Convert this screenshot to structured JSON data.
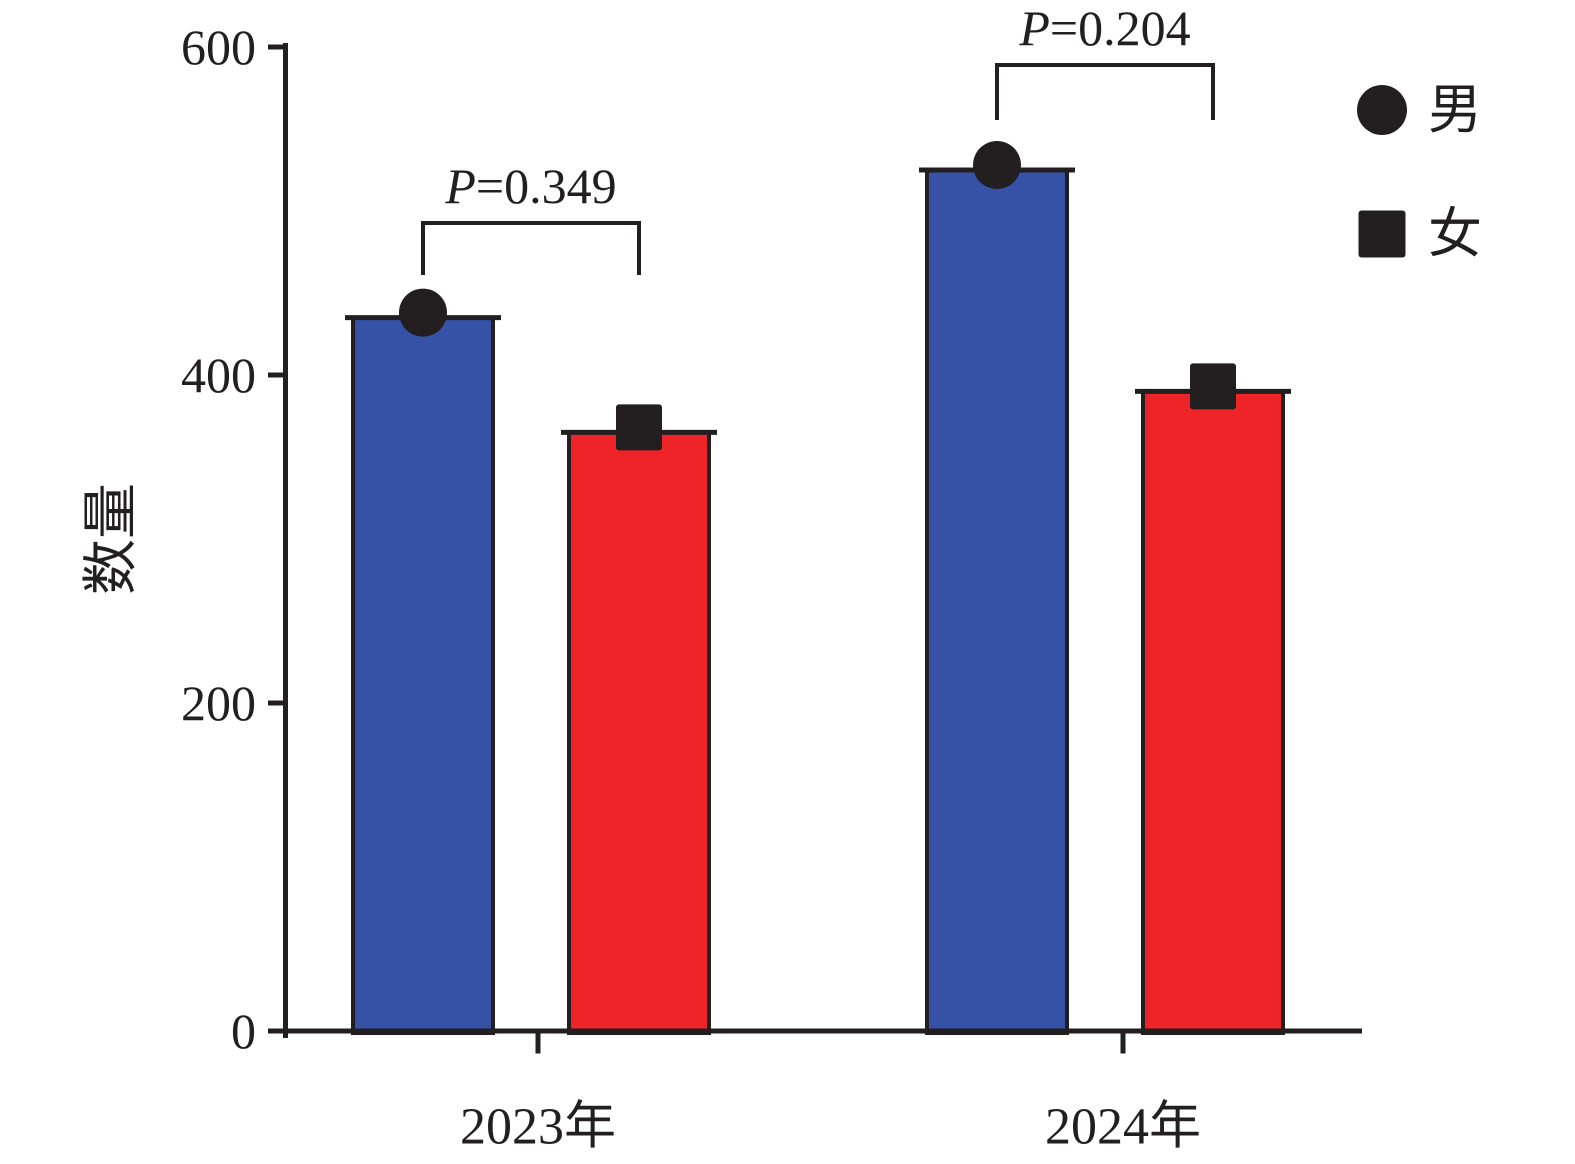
{
  "colors": {
    "ink": "#231F20",
    "male_bar": "#3552A7",
    "female_bar": "#EE2429",
    "background": "#FFFFFF"
  },
  "chart_data": {
    "type": "bar",
    "categories": [
      "2023年",
      "2024年"
    ],
    "series": [
      {
        "name": "男",
        "slug": "male",
        "marker": "circle",
        "color": "#3552A7",
        "values": [
          435,
          525
        ]
      },
      {
        "name": "女",
        "slug": "female",
        "marker": "square",
        "color": "#EE2429",
        "values": [
          365,
          390
        ]
      }
    ],
    "ylabel": "数量",
    "xlabel": "",
    "ylim": [
      0,
      600
    ],
    "yticks": [
      0,
      200,
      400,
      600
    ],
    "grid": false,
    "legend_position": "upper right",
    "annotations": [
      {
        "category": "2023年",
        "label": "P=0.349"
      },
      {
        "category": "2024年",
        "label": "P=0.204"
      }
    ]
  }
}
